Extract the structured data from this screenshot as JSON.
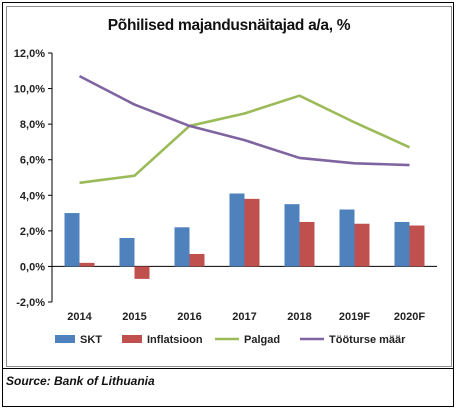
{
  "title": "Põhilised majandusnäitajad a/a, %",
  "source": "Source: Bank of Lithuania",
  "colors": {
    "SKT": "#4f81bd",
    "Inflatsioon": "#c0504d",
    "Palgad": "#9bbb59",
    "Tööturse": "#8064a2",
    "gridline": "#000000"
  },
  "chart_data": {
    "type": "bar",
    "title": "Põhilised majandusnäitajad a/a, %",
    "categories": [
      "2014",
      "2015",
      "2016",
      "2017",
      "2018",
      "2019F",
      "2020F"
    ],
    "y_ticks": [
      "-2,0%",
      "0,0%",
      "2,0%",
      "4,0%",
      "6,0%",
      "8,0%",
      "10,0%",
      "12,0%"
    ],
    "ylim": [
      -2,
      12
    ],
    "grid": false,
    "legend_position": "bottom",
    "series": [
      {
        "name": "SKT",
        "kind": "bar",
        "values": [
          3.0,
          1.6,
          2.2,
          4.1,
          3.5,
          3.2,
          2.5
        ]
      },
      {
        "name": "Inflatsioon",
        "kind": "bar",
        "values": [
          0.2,
          -0.7,
          0.7,
          3.8,
          2.5,
          2.4,
          2.3
        ]
      },
      {
        "name": "Palgad",
        "kind": "line",
        "values": [
          4.7,
          5.1,
          7.9,
          8.6,
          9.6,
          8.1,
          6.7
        ]
      },
      {
        "name": "Tööturse määr",
        "kind": "line",
        "values": [
          10.7,
          9.1,
          7.9,
          7.1,
          6.1,
          5.8,
          5.7
        ]
      }
    ]
  }
}
